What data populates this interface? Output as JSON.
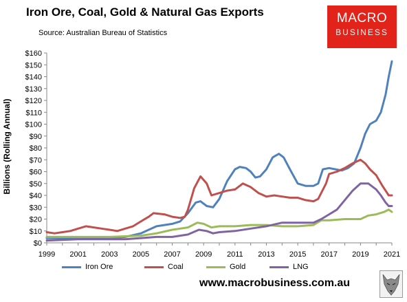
{
  "header": {
    "title": "Iron Ore, Coal, Gold & Natural Gas Exports",
    "source": "Source: Australian Bureau of Statistics"
  },
  "logo": {
    "line1": "MACRO",
    "line2": "BUSINESS"
  },
  "footer": {
    "url": "www.macrobusiness.com.au"
  },
  "colors": {
    "iron_ore": "#4f81bd",
    "coal": "#c0504d",
    "gold": "#9bbb59",
    "lng": "#8064a2",
    "logo_red": "#e2231a"
  },
  "chart_data": {
    "type": "line",
    "ylabel": "Billions (Rolling Annual)",
    "xlim": [
      1999,
      2021
    ],
    "ylim": [
      0,
      160
    ],
    "yticks": [
      0,
      10,
      20,
      30,
      40,
      50,
      60,
      70,
      80,
      90,
      100,
      110,
      120,
      130,
      140,
      150,
      160
    ],
    "ytick_labels": [
      "$0",
      "$10",
      "$20",
      "$30",
      "$40",
      "$50",
      "$60",
      "$70",
      "$80",
      "$90",
      "$100",
      "$110",
      "$120",
      "$130",
      "$140",
      "$150",
      "$160"
    ],
    "xticks": [
      1999,
      2001,
      2003,
      2005,
      2007,
      2009,
      2011,
      2013,
      2015,
      2017,
      2019,
      2021
    ],
    "xtick_labels": [
      "1999",
      "2001",
      "2003",
      "2005",
      "2007",
      "2009",
      "2011",
      "2013",
      "2015",
      "2017",
      "2019",
      "2021"
    ],
    "grid": false,
    "legend_position": "bottom",
    "series": [
      {
        "key": "iron_ore",
        "name": "Iron Ore",
        "points": [
          [
            1999,
            4
          ],
          [
            2000,
            4
          ],
          [
            2001,
            4
          ],
          [
            2002,
            4
          ],
          [
            2003,
            4
          ],
          [
            2004,
            5
          ],
          [
            2005,
            8
          ],
          [
            2005.5,
            11
          ],
          [
            2006,
            14
          ],
          [
            2006.5,
            15
          ],
          [
            2007,
            16
          ],
          [
            2007.5,
            18
          ],
          [
            2008,
            25
          ],
          [
            2008.5,
            34
          ],
          [
            2008.8,
            35
          ],
          [
            2009.2,
            31
          ],
          [
            2009.6,
            30
          ],
          [
            2010,
            37
          ],
          [
            2010.5,
            52
          ],
          [
            2011,
            62
          ],
          [
            2011.3,
            64
          ],
          [
            2011.7,
            63
          ],
          [
            2012,
            60
          ],
          [
            2012.3,
            55
          ],
          [
            2012.6,
            56
          ],
          [
            2013,
            62
          ],
          [
            2013.4,
            72
          ],
          [
            2013.8,
            75
          ],
          [
            2014.1,
            72
          ],
          [
            2014.5,
            62
          ],
          [
            2015,
            50
          ],
          [
            2015.5,
            48
          ],
          [
            2016,
            48
          ],
          [
            2016.3,
            50
          ],
          [
            2016.6,
            62
          ],
          [
            2017,
            63
          ],
          [
            2017.4,
            62
          ],
          [
            2017.8,
            61
          ],
          [
            2018.2,
            63
          ],
          [
            2018.6,
            67
          ],
          [
            2019,
            80
          ],
          [
            2019.3,
            92
          ],
          [
            2019.6,
            100
          ],
          [
            2020,
            103
          ],
          [
            2020.3,
            110
          ],
          [
            2020.6,
            125
          ],
          [
            2020.8,
            140
          ],
          [
            2021,
            153
          ]
        ]
      },
      {
        "key": "coal",
        "name": "Coal",
        "points": [
          [
            1999,
            9
          ],
          [
            1999.5,
            8
          ],
          [
            2000,
            9
          ],
          [
            2000.5,
            10
          ],
          [
            2001,
            12
          ],
          [
            2001.5,
            14
          ],
          [
            2002,
            13
          ],
          [
            2002.5,
            12
          ],
          [
            2003,
            11
          ],
          [
            2003.5,
            10
          ],
          [
            2004,
            12
          ],
          [
            2004.5,
            14
          ],
          [
            2005,
            18
          ],
          [
            2005.5,
            22
          ],
          [
            2005.8,
            25
          ],
          [
            2006.5,
            24
          ],
          [
            2007,
            22
          ],
          [
            2007.5,
            21
          ],
          [
            2007.8,
            22
          ],
          [
            2008,
            28
          ],
          [
            2008.4,
            46
          ],
          [
            2008.8,
            56
          ],
          [
            2009.2,
            50
          ],
          [
            2009.5,
            40
          ],
          [
            2010,
            42
          ],
          [
            2010.5,
            44
          ],
          [
            2011,
            45
          ],
          [
            2011.5,
            50
          ],
          [
            2012,
            47
          ],
          [
            2012.5,
            42
          ],
          [
            2013,
            39
          ],
          [
            2013.5,
            40
          ],
          [
            2014,
            39
          ],
          [
            2014.5,
            38
          ],
          [
            2015,
            38
          ],
          [
            2015.5,
            36
          ],
          [
            2016,
            35
          ],
          [
            2016.3,
            37
          ],
          [
            2016.8,
            50
          ],
          [
            2017,
            58
          ],
          [
            2017.5,
            60
          ],
          [
            2018,
            63
          ],
          [
            2018.5,
            67
          ],
          [
            2019,
            70
          ],
          [
            2019.3,
            67
          ],
          [
            2019.6,
            62
          ],
          [
            2020,
            57
          ],
          [
            2020.4,
            48
          ],
          [
            2020.8,
            40
          ],
          [
            2021,
            40
          ]
        ]
      },
      {
        "key": "gold",
        "name": "Gold",
        "points": [
          [
            1999,
            5
          ],
          [
            2001,
            5
          ],
          [
            2003,
            5
          ],
          [
            2005,
            6
          ],
          [
            2006,
            8
          ],
          [
            2007,
            11
          ],
          [
            2008,
            13
          ],
          [
            2008.6,
            17
          ],
          [
            2009,
            16
          ],
          [
            2009.5,
            13
          ],
          [
            2010,
            14
          ],
          [
            2011,
            14
          ],
          [
            2012,
            15
          ],
          [
            2013,
            15
          ],
          [
            2014,
            14
          ],
          [
            2015,
            14
          ],
          [
            2016,
            15
          ],
          [
            2016.5,
            19
          ],
          [
            2017,
            19
          ],
          [
            2018,
            20
          ],
          [
            2019,
            20
          ],
          [
            2019.5,
            23
          ],
          [
            2020,
            24
          ],
          [
            2020.5,
            26
          ],
          [
            2020.8,
            28
          ],
          [
            2021,
            26
          ]
        ]
      },
      {
        "key": "lng",
        "name": "LNG",
        "points": [
          [
            1999,
            2
          ],
          [
            2001,
            3
          ],
          [
            2003,
            3
          ],
          [
            2004,
            3
          ],
          [
            2005,
            4
          ],
          [
            2006,
            5
          ],
          [
            2007,
            5
          ],
          [
            2008,
            7
          ],
          [
            2008.7,
            11
          ],
          [
            2009.2,
            10
          ],
          [
            2009.6,
            8
          ],
          [
            2010,
            9
          ],
          [
            2011,
            10
          ],
          [
            2012,
            12
          ],
          [
            2013,
            14
          ],
          [
            2014,
            17
          ],
          [
            2015,
            17
          ],
          [
            2016,
            17
          ],
          [
            2016.5,
            20
          ],
          [
            2017,
            24
          ],
          [
            2017.5,
            28
          ],
          [
            2018,
            36
          ],
          [
            2018.5,
            44
          ],
          [
            2019,
            50
          ],
          [
            2019.5,
            50
          ],
          [
            2020,
            45
          ],
          [
            2020.3,
            40
          ],
          [
            2020.6,
            34
          ],
          [
            2020.8,
            31
          ],
          [
            2021,
            31
          ]
        ]
      }
    ]
  }
}
